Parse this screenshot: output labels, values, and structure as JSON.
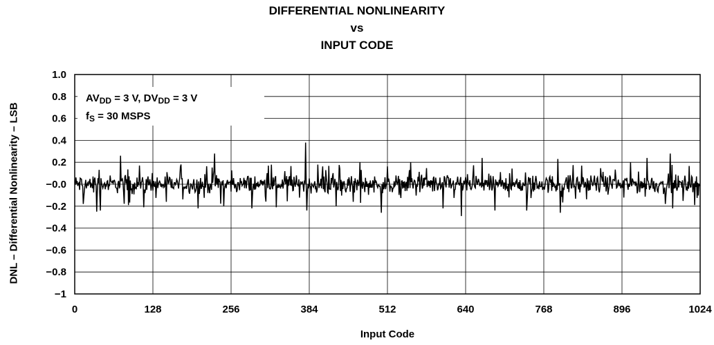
{
  "chart_data": {
    "type": "line",
    "title": [
      "DIFFERENTIAL NONLINEARITY",
      "vs",
      "INPUT CODE"
    ],
    "xlabel": "Input Code",
    "ylabel": "DNL – Differential Nonlinearity – LSB",
    "xlim": [
      0,
      1024
    ],
    "ylim": [
      -1,
      1
    ],
    "x_ticks": [
      0,
      128,
      256,
      384,
      512,
      640,
      768,
      896,
      1024
    ],
    "x_tick_labels": [
      "0",
      "128",
      "256",
      "384",
      "512",
      "640",
      "768",
      "896",
      "1024"
    ],
    "y_ticks": [
      1.0,
      0.8,
      0.6,
      0.4,
      0.2,
      0.0,
      -0.2,
      -0.4,
      -0.6,
      -0.8,
      -1.0
    ],
    "y_tick_labels": [
      "1.0",
      "0.8",
      "0.6",
      "0.4",
      "0.2",
      "−0.0",
      "−0.2",
      "−0.4",
      "−0.6",
      "−0.8",
      "−1"
    ],
    "grid": true,
    "annotation": {
      "line1": {
        "a": "AV",
        "a_sub": "DD",
        "b": " = 3 V, DV",
        "b_sub": "DD",
        "c": " = 3 V"
      },
      "line2": {
        "a": "f",
        "a_sub": "S",
        "b": " = 30 MSPS"
      }
    },
    "series": [
      {
        "x_range": [
          0,
          1023
        ],
        "values_description_excluded": true,
        "baseline": 0.0,
        "noise_amplitude": 0.12,
        "notable_points": [
          {
            "x": 14,
            "y": -0.18
          },
          {
            "x": 36,
            "y": -0.25
          },
          {
            "x": 42,
            "y": -0.24
          },
          {
            "x": 75,
            "y": 0.26
          },
          {
            "x": 88,
            "y": -0.19
          },
          {
            "x": 113,
            "y": -0.21
          },
          {
            "x": 150,
            "y": -0.16
          },
          {
            "x": 174,
            "y": 0.18
          },
          {
            "x": 202,
            "y": -0.22
          },
          {
            "x": 229,
            "y": 0.28
          },
          {
            "x": 244,
            "y": -0.2
          },
          {
            "x": 290,
            "y": -0.22
          },
          {
            "x": 330,
            "y": -0.21
          },
          {
            "x": 378,
            "y": 0.38
          },
          {
            "x": 380,
            "y": -0.24
          },
          {
            "x": 428,
            "y": -0.2
          },
          {
            "x": 467,
            "y": 0.2
          },
          {
            "x": 502,
            "y": -0.26
          },
          {
            "x": 550,
            "y": 0.2
          },
          {
            "x": 603,
            "y": -0.22
          },
          {
            "x": 633,
            "y": -0.29
          },
          {
            "x": 667,
            "y": 0.24
          },
          {
            "x": 688,
            "y": -0.24
          },
          {
            "x": 740,
            "y": -0.24
          },
          {
            "x": 791,
            "y": 0.23
          },
          {
            "x": 795,
            "y": -0.26
          },
          {
            "x": 830,
            "y": 0.17
          },
          {
            "x": 910,
            "y": 0.2
          },
          {
            "x": 937,
            "y": 0.24
          },
          {
            "x": 975,
            "y": 0.28
          },
          {
            "x": 979,
            "y": -0.22
          },
          {
            "x": 1015,
            "y": -0.19
          }
        ]
      }
    ]
  }
}
